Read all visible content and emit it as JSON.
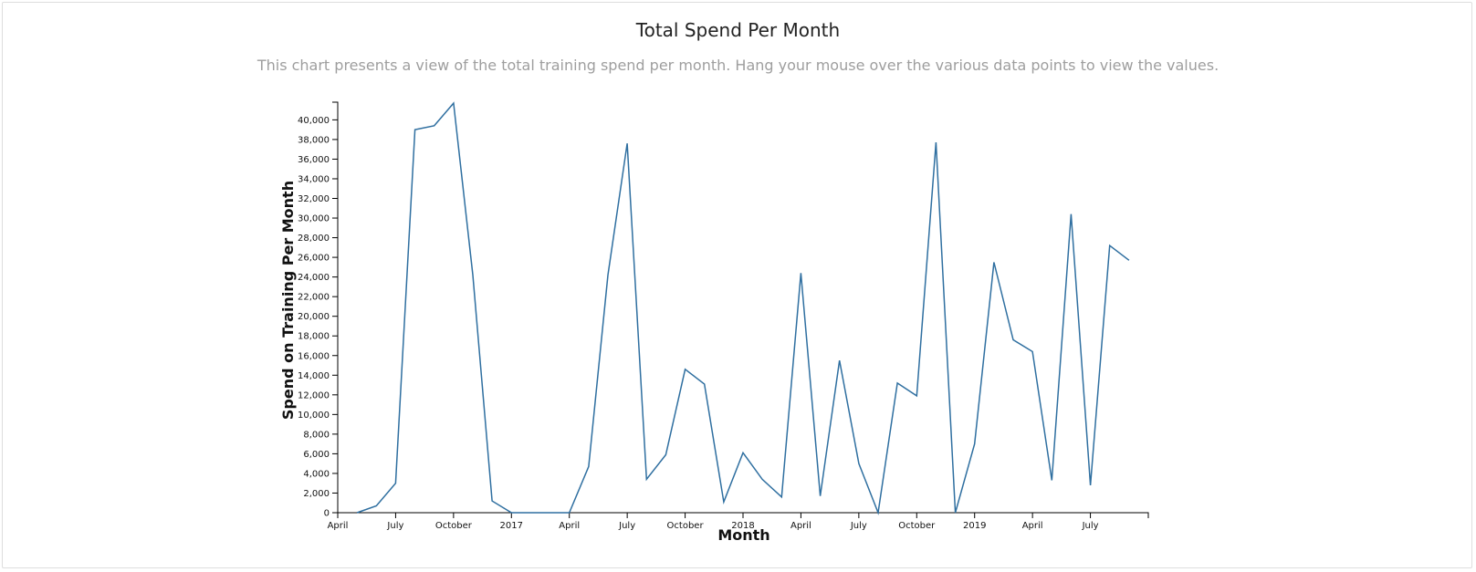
{
  "chart_data": {
    "type": "line",
    "title": "Total Spend Per Month",
    "subtitle": "This chart presents a view of the total training spend per month. Hang your mouse over the various data points to view the values.",
    "xlabel": "Month",
    "ylabel": "Spend on Training Per Month",
    "ylim": [
      0,
      41800
    ],
    "yticks": [
      0,
      2000,
      4000,
      6000,
      8000,
      10000,
      12000,
      14000,
      16000,
      18000,
      20000,
      22000,
      24000,
      26000,
      28000,
      30000,
      32000,
      34000,
      36000,
      38000,
      40000
    ],
    "ytick_labels": [
      "0",
      "2,000",
      "4,000",
      "6,000",
      "8,000",
      "10,000",
      "12,000",
      "14,000",
      "16,000",
      "18,000",
      "20,000",
      "22,000",
      "24,000",
      "26,000",
      "28,000",
      "30,000",
      "32,000",
      "34,000",
      "36,000",
      "38,000",
      "40,000"
    ],
    "xlim": [
      "2016-04",
      "2019-10"
    ],
    "xticks": [
      "2016-04",
      "2016-07",
      "2016-10",
      "2017-01",
      "2017-04",
      "2017-07",
      "2017-10",
      "2018-01",
      "2018-04",
      "2018-07",
      "2018-10",
      "2019-01",
      "2019-04",
      "2019-07"
    ],
    "xtick_labels": [
      "April",
      "July",
      "October",
      "2017",
      "April",
      "July",
      "October",
      "2018",
      "April",
      "July",
      "October",
      "2019",
      "April",
      "July"
    ],
    "line_color": "#2f6fa0",
    "series": [
      {
        "x": [
          "2016-05",
          "2016-06",
          "2016-07",
          "2016-08",
          "2016-09",
          "2016-10",
          "2016-11",
          "2016-12",
          "2017-01",
          "2017-02",
          "2017-03",
          "2017-04",
          "2017-05",
          "2017-06",
          "2017-07",
          "2017-08",
          "2017-09",
          "2017-10",
          "2017-11",
          "2017-12",
          "2018-01",
          "2018-02",
          "2018-03",
          "2018-04",
          "2018-05",
          "2018-06",
          "2018-07",
          "2018-08",
          "2018-09",
          "2018-10",
          "2018-11",
          "2018-12",
          "2019-01",
          "2019-02",
          "2019-03",
          "2019-04",
          "2019-05",
          "2019-06",
          "2019-07",
          "2019-08",
          "2019-09"
        ],
        "values": [
          0,
          700,
          3000,
          39000,
          39400,
          41700,
          24200,
          1200,
          0,
          0,
          0,
          0,
          4700,
          24200,
          37600,
          3400,
          5900,
          14600,
          13100,
          1100,
          6100,
          3400,
          1600,
          24400,
          1700,
          15500,
          5000,
          0,
          13200,
          11900,
          37700,
          0,
          7000,
          25500,
          17600,
          16400,
          3300,
          30400,
          2800,
          27200,
          25700
        ]
      }
    ]
  }
}
